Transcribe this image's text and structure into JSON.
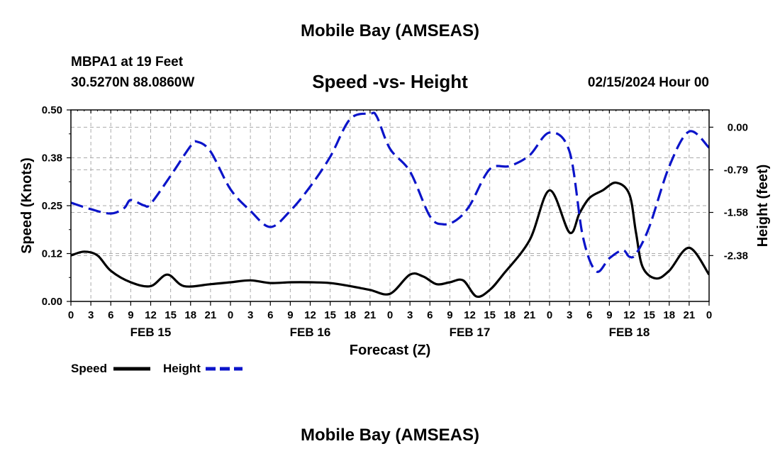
{
  "titles": {
    "main": "Mobile Bay (AMSEAS)",
    "main_repeat": "Mobile Bay (AMSEAS)",
    "station": "MBPA1 at 19 Feet",
    "coords": "30.5270N  88.0860W",
    "chart": "Speed -vs- Height",
    "run_time": "02/15/2024 Hour 00"
  },
  "colors": {
    "speed": "#000000",
    "height": "#0b14c9",
    "grid": "#aaaaaa"
  },
  "chart_data": {
    "type": "line",
    "title": "Speed -vs- Height",
    "xlabel": "Forecast (Z)",
    "ylabel": "Speed (Knots)",
    "y2label": "Height (feet)",
    "xlim": [
      0,
      96
    ],
    "ylim": [
      0,
      0.5
    ],
    "y2lim": [
      -3.23,
      0.32
    ],
    "x_ticks": [
      0,
      3,
      6,
      9,
      12,
      15,
      18,
      21,
      24,
      27,
      30,
      33,
      36,
      39,
      42,
      45,
      48,
      51,
      54,
      57,
      60,
      63,
      66,
      69,
      72,
      75,
      78,
      81,
      84,
      87,
      90,
      93,
      96
    ],
    "x_tick_labels": [
      "0",
      "3",
      "6",
      "9",
      "12",
      "15",
      "18",
      "21",
      "0",
      "3",
      "6",
      "9",
      "12",
      "15",
      "18",
      "21",
      "0",
      "3",
      "6",
      "9",
      "12",
      "15",
      "18",
      "21",
      "0",
      "3",
      "6",
      "9",
      "12",
      "15",
      "18",
      "21",
      "0"
    ],
    "date_labels": [
      {
        "x": 12,
        "label": "FEB 15"
      },
      {
        "x": 36,
        "label": "FEB 16"
      },
      {
        "x": 60,
        "label": "FEB 17"
      },
      {
        "x": 84,
        "label": "FEB 18"
      }
    ],
    "y_ticks": [
      0,
      0.125,
      0.25,
      0.375,
      0.5
    ],
    "y_tick_labels": [
      "0.00",
      "0.12",
      "0.25",
      "0.38",
      "0.50"
    ],
    "y2_ticks": [
      0,
      -0.79,
      -1.58,
      -2.38
    ],
    "y2_tick_labels": [
      "0.00",
      "-0.79",
      "-1.58",
      "-2.38"
    ],
    "series": [
      {
        "name": "Speed",
        "axis": "left",
        "style": "solid",
        "x": [
          0,
          2,
          4,
          6,
          9,
          12,
          14.5,
          17,
          21,
          24,
          27,
          30,
          33,
          36,
          39,
          42,
          45,
          48,
          51,
          53,
          55,
          57,
          59,
          61,
          63,
          65,
          69,
          72,
          75,
          76.5,
          78,
          80,
          82,
          84,
          85,
          86,
          88,
          90,
          93,
          96
        ],
        "y": [
          0.12,
          0.13,
          0.12,
          0.08,
          0.05,
          0.04,
          0.07,
          0.04,
          0.045,
          0.05,
          0.055,
          0.048,
          0.05,
          0.05,
          0.048,
          0.04,
          0.03,
          0.02,
          0.07,
          0.065,
          0.045,
          0.05,
          0.055,
          0.013,
          0.03,
          0.07,
          0.16,
          0.29,
          0.18,
          0.23,
          0.27,
          0.29,
          0.31,
          0.28,
          0.18,
          0.09,
          0.06,
          0.08,
          0.14,
          0.07
        ]
      },
      {
        "name": "Height",
        "axis": "right",
        "style": "dashed",
        "x": [
          0,
          3,
          6,
          8,
          9,
          11,
          12,
          15,
          18,
          19,
          21,
          24,
          27,
          30,
          33,
          36,
          39,
          42,
          45,
          46,
          48,
          51,
          54,
          56,
          58,
          60,
          63,
          66,
          69,
          72,
          75,
          77,
          79,
          81,
          83,
          84,
          85,
          87,
          90,
          93,
          96
        ],
        "y": [
          -1.4,
          -1.52,
          -1.6,
          -1.5,
          -1.35,
          -1.45,
          -1.42,
          -0.9,
          -0.35,
          -0.27,
          -0.45,
          -1.15,
          -1.55,
          -1.85,
          -1.55,
          -1.1,
          -0.55,
          0.15,
          0.25,
          0.2,
          -0.4,
          -0.82,
          -1.65,
          -1.8,
          -1.72,
          -1.45,
          -0.78,
          -0.72,
          -0.52,
          -0.1,
          -0.45,
          -2.02,
          -2.67,
          -2.43,
          -2.28,
          -2.4,
          -2.35,
          -1.85,
          -0.73,
          -0.08,
          -0.38
        ]
      }
    ],
    "legend": [
      {
        "label": "Speed",
        "style": "solid"
      },
      {
        "label": "Height",
        "style": "dashed"
      }
    ],
    "legend_position": "bottom-left",
    "grid": true
  }
}
